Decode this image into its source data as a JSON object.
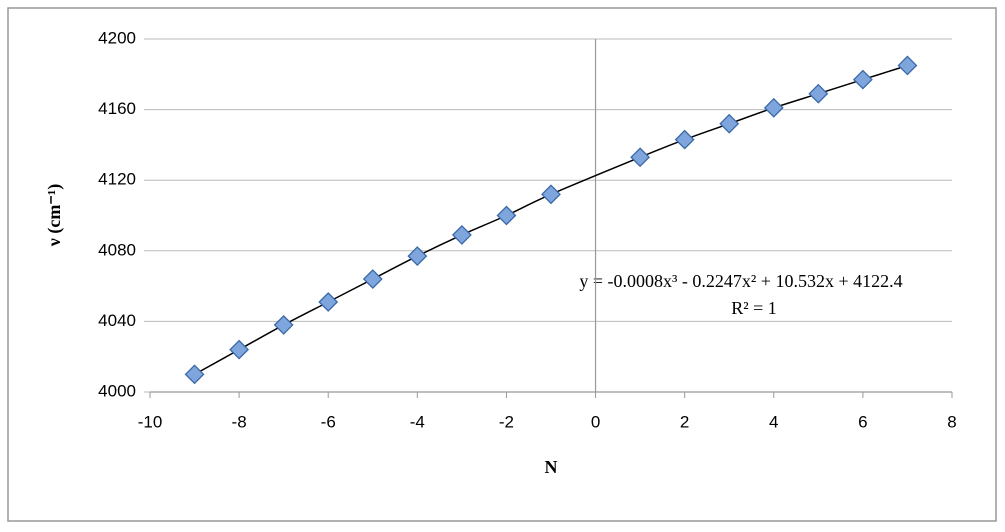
{
  "chart_data": {
    "type": "scatter",
    "x_label": "N",
    "y_label": "ν (cm⁻¹)",
    "equation": "y = -0.0008x³ - 0.2247x² + 10.532x + 4122.4",
    "r_squared": "R² = 1",
    "series": [
      {
        "color": "#7ea6dc",
        "x": [
          -9,
          -8,
          -7,
          -6,
          -5,
          -4,
          -3,
          -2,
          -1,
          1,
          2,
          3,
          4,
          5,
          6,
          7
        ],
        "values": [
          4010,
          4024,
          4038,
          4051,
          4064,
          4077,
          4089,
          4100,
          4112,
          4133,
          4143,
          4152,
          4161,
          4169,
          4177,
          4185
        ]
      }
    ],
    "xlim": [
      -10,
      8
    ],
    "xticks": [
      -10,
      -8,
      -6,
      -4,
      -2,
      0,
      2,
      4,
      6,
      8
    ],
    "ylim": [
      4000,
      4200
    ],
    "yticks": [
      4000,
      4040,
      4080,
      4120,
      4160,
      4200
    ],
    "grid": true
  }
}
